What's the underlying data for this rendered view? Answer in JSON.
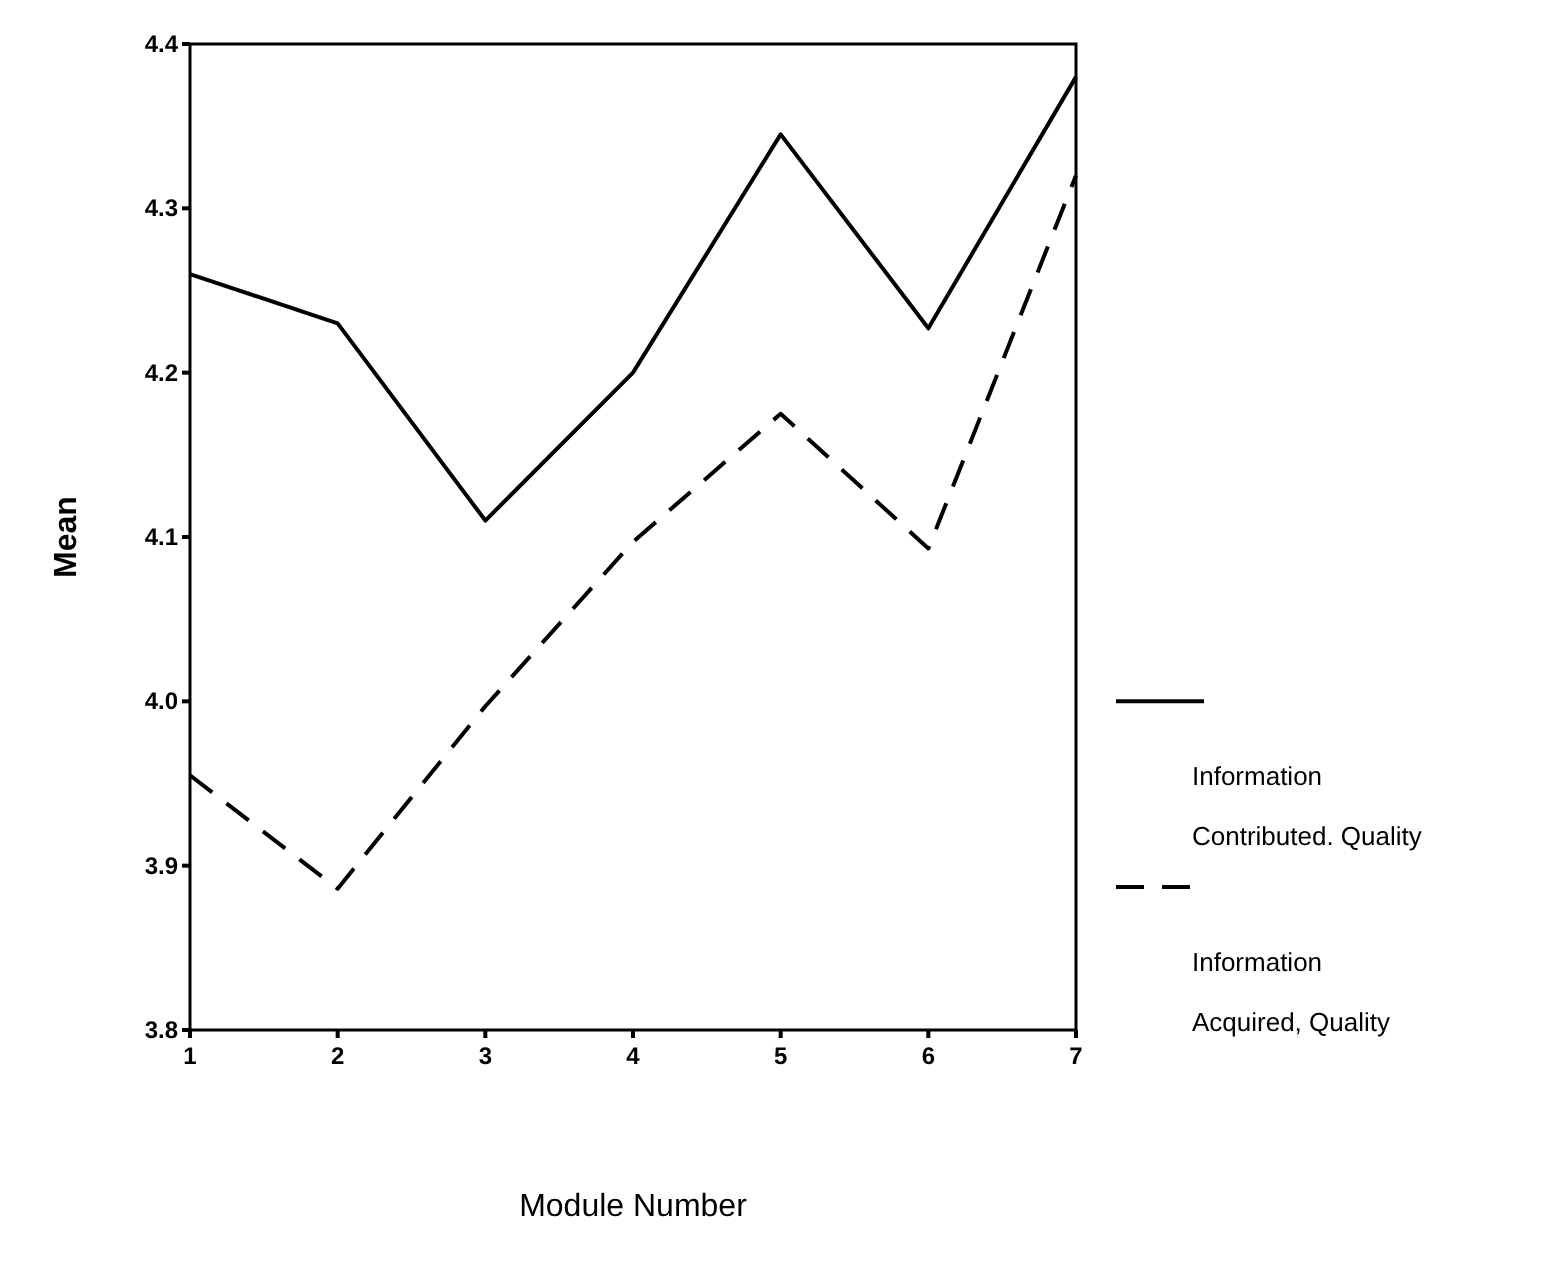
{
  "chart_data": {
    "type": "line",
    "xlabel": "Module Number",
    "ylabel": "Mean",
    "x": [
      1,
      2,
      3,
      4,
      5,
      6,
      7
    ],
    "xlim": [
      1,
      7
    ],
    "xticks": [
      1,
      2,
      3,
      4,
      5,
      6,
      7
    ],
    "ylim": [
      3.8,
      4.4
    ],
    "yticks": [
      3.8,
      3.9,
      {
        "value": 4,
        "label": "4.0"
      },
      4.1,
      4.2,
      4.3,
      4.4
    ],
    "grid": false,
    "legend": "right",
    "marker": "none",
    "series": [
      {
        "name": "Information Contributed. Quality",
        "color": "#000000",
        "line_style": "solid",
        "values": [
          4.26,
          4.23,
          4.11,
          4.2,
          4.345,
          4.227,
          4.38
        ]
      },
      {
        "name": "Information Acquired, Quality",
        "color": "#000000",
        "line_style": "dashed",
        "values": [
          3.955,
          3.886,
          3.997,
          4.097,
          4.175,
          4.093,
          4.32
        ]
      }
    ]
  }
}
